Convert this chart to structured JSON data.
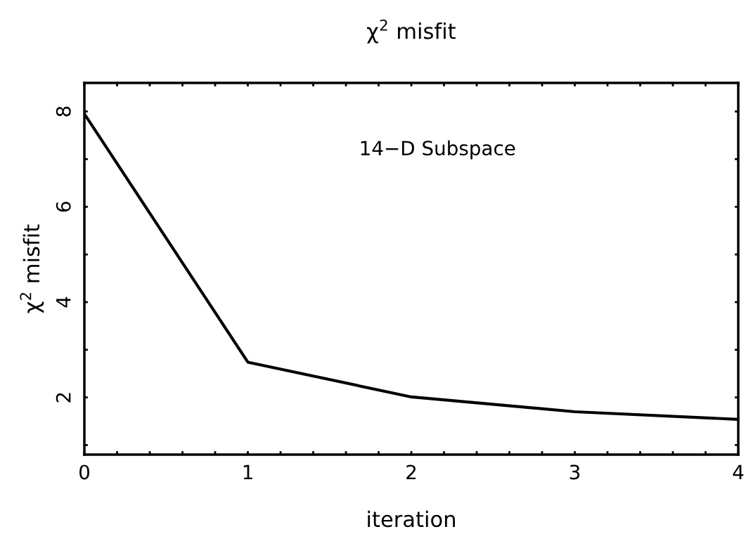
{
  "chart_data": {
    "type": "line",
    "title": "χ$^{2}$ misfit",
    "xlabel": "iteration",
    "ylabel": "χ$^{2}$ misfit",
    "annotations": [
      "14−D Subspace"
    ],
    "x": [
      0,
      1,
      2,
      3,
      4
    ],
    "series": [
      {
        "color": "#000000",
        "values": [
          7.95,
          2.74,
          2.01,
          1.7,
          1.54
        ]
      }
    ],
    "xlim": [
      0,
      4
    ],
    "ylim": [
      0.8,
      8.6
    ],
    "xticks": [
      0,
      {
        "value": 0.2,
        "label": null
      },
      {
        "value": 0.4,
        "label": null
      },
      {
        "value": 0.6,
        "label": null
      },
      {
        "value": 0.8,
        "label": null
      },
      1,
      {
        "value": 1.2,
        "label": null
      },
      {
        "value": 1.4,
        "label": null
      },
      {
        "value": 1.6,
        "label": null
      },
      {
        "value": 1.8,
        "label": null
      },
      2,
      {
        "value": 2.2,
        "label": null
      },
      {
        "value": 2.4,
        "label": null
      },
      {
        "value": 2.6,
        "label": null
      },
      {
        "value": 2.8,
        "label": null
      },
      3,
      {
        "value": 3.2,
        "label": null
      },
      {
        "value": 3.4,
        "label": null
      },
      {
        "value": 3.6,
        "label": null
      },
      {
        "value": 3.8,
        "label": null
      },
      4
    ],
    "yticks": [
      {
        "value": 1,
        "label": null
      },
      2,
      {
        "value": 3,
        "label": null
      },
      4,
      {
        "value": 5,
        "label": null
      },
      6,
      {
        "value": 7,
        "label": null
      },
      8
    ],
    "grid": false,
    "legend": false,
    "marker": "none",
    "line_style": "solid"
  }
}
